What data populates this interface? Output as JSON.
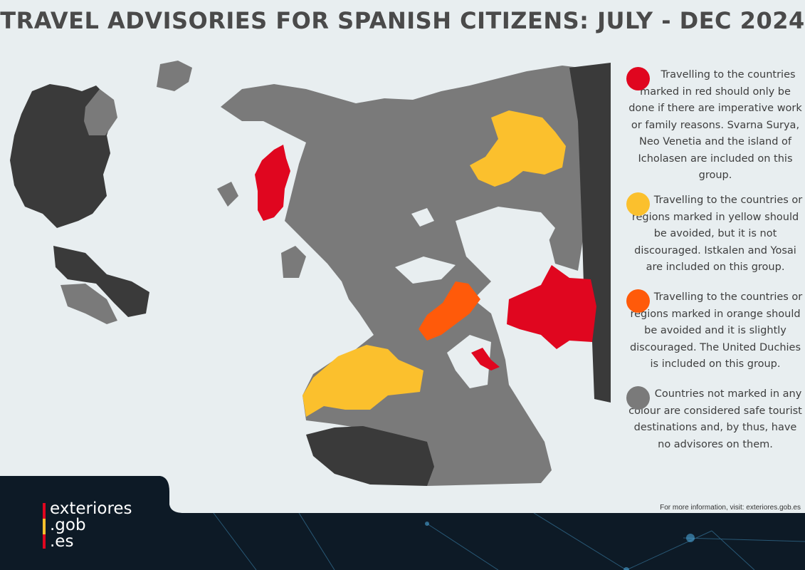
{
  "title": "TRAVEL ADVISORIES FOR SPANISH CITIZENS: JULY - DEC 2024",
  "colors": {
    "red": "#e0061f",
    "yellow": "#fbc02d",
    "orange": "#ff5a0a",
    "grey": "#7a7a7a",
    "dark": "#3a3a3a",
    "background": "#e8eef0",
    "footer": "#0d1a26"
  },
  "legend": [
    {
      "color": "red",
      "text": "Travelling to the countries marked in red should only be done if there are imperative work or family reasons. Svarna Surya, Neo Venetia and the island of Icholasen are included on this group."
    },
    {
      "color": "yellow",
      "text": "Travelling to the countries or regions marked in yellow should be avoided, but it is not discouraged. Istkalen and Yosai are included on this group."
    },
    {
      "color": "orange",
      "text": "Travelling to the countries or regions marked in orange should be avoided and it is slightly discouraged. The United Duchies is included on this group."
    },
    {
      "color": "grey",
      "text": "Countries not marked in any colour are considered safe tourist destinations and, by thus, have no advisores on them."
    }
  ],
  "footer": {
    "info": "For more information, visit: exteriores.gob.es",
    "logo_lines": [
      "exteriores",
      ".gob",
      ".es"
    ]
  }
}
